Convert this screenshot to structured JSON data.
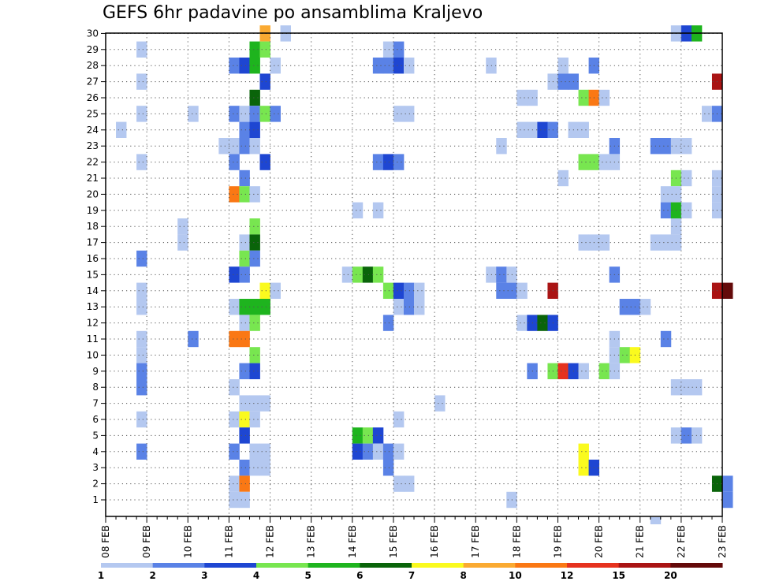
{
  "chart_data": {
    "type": "heatmap",
    "title": "GEFS 6hr padavine po ansamblima Kraljevo",
    "x_ticks": [
      "08 FEB",
      "09 FEB",
      "10 FEB",
      "11 FEB",
      "12 FEB",
      "13 FEB",
      "14 FEB",
      "15 FEB",
      "16 FEB",
      "17 FEB",
      "18 FEB",
      "19 FEB",
      "20 FEB",
      "21 FEB",
      "22 FEB",
      "23 FEB"
    ],
    "y_ticks": [
      "1",
      "2",
      "3",
      "4",
      "5",
      "6",
      "7",
      "8",
      "9",
      "10",
      "11",
      "12",
      "13",
      "14",
      "15",
      "16",
      "17",
      "18",
      "19",
      "20",
      "21",
      "22",
      "23",
      "24",
      "25",
      "26",
      "27",
      "28",
      "29",
      "30"
    ],
    "x_step": "6hr",
    "x_start": "08 FEB 00Z",
    "grid": true,
    "legend": {
      "position": "bottom",
      "levels": [
        "1",
        "2",
        "3",
        "4",
        "5",
        "6",
        "7",
        "8",
        "10",
        "12",
        "15",
        "20"
      ],
      "colors": [
        "#b4c8f0",
        "#5a82e6",
        "#1e46d2",
        "#78e650",
        "#1eb41e",
        "#0a640a",
        "#fafa1e",
        "#faaa32",
        "#fa7814",
        "#e6321e",
        "#aa1414",
        "#640a0a"
      ]
    },
    "cells": [
      [
        30,
        "11 FEB 18Z",
        8
      ],
      [
        30,
        "12 FEB 06Z",
        1
      ],
      [
        30,
        "21 FEB 18Z",
        1
      ],
      [
        30,
        "22 FEB 00Z",
        3
      ],
      [
        30,
        "22 FEB 06Z",
        5
      ],
      [
        29,
        "08 FEB 18Z",
        1
      ],
      [
        29,
        "11 FEB 12Z",
        5
      ],
      [
        29,
        "11 FEB 18Z",
        4
      ],
      [
        29,
        "14 FEB 18Z",
        1
      ],
      [
        29,
        "15 FEB 00Z",
        2
      ],
      [
        28,
        "11 FEB 00Z",
        2
      ],
      [
        28,
        "11 FEB 06Z",
        3
      ],
      [
        28,
        "11 FEB 12Z",
        5
      ],
      [
        28,
        "12 FEB 00Z",
        1
      ],
      [
        28,
        "14 FEB 12Z",
        2
      ],
      [
        28,
        "14 FEB 18Z",
        2
      ],
      [
        28,
        "15 FEB 00Z",
        3
      ],
      [
        28,
        "15 FEB 06Z",
        1
      ],
      [
        28,
        "17 FEB 06Z",
        1
      ],
      [
        28,
        "19 FEB 00Z",
        1
      ],
      [
        28,
        "19 FEB 18Z",
        2
      ],
      [
        27,
        "08 FEB 18Z",
        1
      ],
      [
        27,
        "11 FEB 18Z",
        3
      ],
      [
        27,
        "18 FEB 18Z",
        1
      ],
      [
        27,
        "19 FEB 00Z",
        2
      ],
      [
        27,
        "19 FEB 06Z",
        2
      ],
      [
        27,
        "22 FEB 18Z",
        15
      ],
      [
        26,
        "11 FEB 12Z",
        6
      ],
      [
        26,
        "18 FEB 00Z",
        1
      ],
      [
        26,
        "18 FEB 06Z",
        1
      ],
      [
        26,
        "19 FEB 12Z",
        4
      ],
      [
        26,
        "19 FEB 18Z",
        10
      ],
      [
        26,
        "20 FEB 00Z",
        1
      ],
      [
        25,
        "08 FEB 18Z",
        1
      ],
      [
        25,
        "10 FEB 00Z",
        1
      ],
      [
        25,
        "11 FEB 00Z",
        2
      ],
      [
        25,
        "11 FEB 06Z",
        1
      ],
      [
        25,
        "11 FEB 12Z",
        2
      ],
      [
        25,
        "11 FEB 18Z",
        4
      ],
      [
        25,
        "12 FEB 00Z",
        2
      ],
      [
        25,
        "15 FEB 00Z",
        1
      ],
      [
        25,
        "15 FEB 06Z",
        1
      ],
      [
        25,
        "22 FEB 12Z",
        1
      ],
      [
        25,
        "22 FEB 18Z",
        2
      ],
      [
        24,
        "08 FEB 06Z",
        1
      ],
      [
        24,
        "11 FEB 06Z",
        2
      ],
      [
        24,
        "11 FEB 12Z",
        3
      ],
      [
        24,
        "18 FEB 00Z",
        1
      ],
      [
        24,
        "18 FEB 06Z",
        1
      ],
      [
        24,
        "18 FEB 12Z",
        3
      ],
      [
        24,
        "18 FEB 18Z",
        2
      ],
      [
        24,
        "19 FEB 06Z",
        1
      ],
      [
        24,
        "19 FEB 12Z",
        1
      ],
      [
        23,
        "10 FEB 18Z",
        1
      ],
      [
        23,
        "11 FEB 00Z",
        1
      ],
      [
        23,
        "11 FEB 06Z",
        2
      ],
      [
        23,
        "11 FEB 12Z",
        1
      ],
      [
        23,
        "17 FEB 12Z",
        1
      ],
      [
        23,
        "20 FEB 06Z",
        2
      ],
      [
        23,
        "21 FEB 06Z",
        2
      ],
      [
        23,
        "21 FEB 12Z",
        2
      ],
      [
        23,
        "21 FEB 18Z",
        1
      ],
      [
        23,
        "22 FEB 00Z",
        1
      ],
      [
        22,
        "08 FEB 18Z",
        1
      ],
      [
        22,
        "11 FEB 00Z",
        2
      ],
      [
        22,
        "11 FEB 18Z",
        3
      ],
      [
        22,
        "14 FEB 12Z",
        2
      ],
      [
        22,
        "14 FEB 18Z",
        3
      ],
      [
        22,
        "15 FEB 00Z",
        2
      ],
      [
        22,
        "19 FEB 12Z",
        4
      ],
      [
        22,
        "19 FEB 18Z",
        4
      ],
      [
        22,
        "20 FEB 00Z",
        1
      ],
      [
        22,
        "20 FEB 06Z",
        1
      ],
      [
        21,
        "11 FEB 06Z",
        2
      ],
      [
        21,
        "19 FEB 00Z",
        1
      ],
      [
        21,
        "21 FEB 18Z",
        4
      ],
      [
        21,
        "22 FEB 00Z",
        1
      ],
      [
        21,
        "22 FEB 18Z",
        1
      ],
      [
        20,
        "11 FEB 00Z",
        10
      ],
      [
        20,
        "11 FEB 06Z",
        4
      ],
      [
        20,
        "11 FEB 12Z",
        1
      ],
      [
        20,
        "21 FEB 12Z",
        1
      ],
      [
        20,
        "21 FEB 18Z",
        1
      ],
      [
        20,
        "22 FEB 18Z",
        1
      ],
      [
        19,
        "14 FEB 00Z",
        1
      ],
      [
        19,
        "14 FEB 12Z",
        1
      ],
      [
        19,
        "21 FEB 12Z",
        2
      ],
      [
        19,
        "21 FEB 18Z",
        5
      ],
      [
        19,
        "22 FEB 00Z",
        1
      ],
      [
        19,
        "22 FEB 18Z",
        1
      ],
      [
        18,
        "09 FEB 18Z",
        1
      ],
      [
        18,
        "11 FEB 12Z",
        4
      ],
      [
        18,
        "21 FEB 18Z",
        1
      ],
      [
        17,
        "09 FEB 18Z",
        1
      ],
      [
        17,
        "11 FEB 06Z",
        1
      ],
      [
        17,
        "11 FEB 12Z",
        6
      ],
      [
        17,
        "19 FEB 12Z",
        1
      ],
      [
        17,
        "19 FEB 18Z",
        1
      ],
      [
        17,
        "20 FEB 00Z",
        1
      ],
      [
        17,
        "21 FEB 06Z",
        1
      ],
      [
        17,
        "21 FEB 12Z",
        1
      ],
      [
        17,
        "21 FEB 18Z",
        1
      ],
      [
        16,
        "08 FEB 18Z",
        2
      ],
      [
        16,
        "11 FEB 06Z",
        4
      ],
      [
        16,
        "11 FEB 12Z",
        2
      ],
      [
        15,
        "11 FEB 00Z",
        3
      ],
      [
        15,
        "11 FEB 06Z",
        2
      ],
      [
        15,
        "13 FEB 18Z",
        1
      ],
      [
        15,
        "14 FEB 00Z",
        4
      ],
      [
        15,
        "14 FEB 06Z",
        6
      ],
      [
        15,
        "14 FEB 12Z",
        4
      ],
      [
        15,
        "17 FEB 06Z",
        1
      ],
      [
        15,
        "17 FEB 12Z",
        2
      ],
      [
        15,
        "17 FEB 18Z",
        1
      ],
      [
        15,
        "20 FEB 06Z",
        2
      ],
      [
        14,
        "08 FEB 18Z",
        1
      ],
      [
        14,
        "11 FEB 18Z",
        7
      ],
      [
        14,
        "12 FEB 00Z",
        1
      ],
      [
        14,
        "14 FEB 18Z",
        4
      ],
      [
        14,
        "15 FEB 00Z",
        3
      ],
      [
        14,
        "15 FEB 06Z",
        2
      ],
      [
        14,
        "15 FEB 12Z",
        1
      ],
      [
        14,
        "17 FEB 12Z",
        2
      ],
      [
        14,
        "17 FEB 18Z",
        2
      ],
      [
        14,
        "18 FEB 00Z",
        1
      ],
      [
        14,
        "18 FEB 18Z",
        15
      ],
      [
        14,
        "22 FEB 18Z",
        15
      ],
      [
        14,
        "23 FEB 00Z",
        20
      ],
      [
        13,
        "08 FEB 18Z",
        1
      ],
      [
        13,
        "11 FEB 00Z",
        1
      ],
      [
        13,
        "11 FEB 06Z",
        5
      ],
      [
        13,
        "11 FEB 12Z",
        5
      ],
      [
        13,
        "11 FEB 18Z",
        5
      ],
      [
        13,
        "15 FEB 00Z",
        1
      ],
      [
        13,
        "15 FEB 06Z",
        2
      ],
      [
        13,
        "15 FEB 12Z",
        1
      ],
      [
        13,
        "20 FEB 12Z",
        2
      ],
      [
        13,
        "20 FEB 18Z",
        2
      ],
      [
        13,
        "21 FEB 00Z",
        1
      ],
      [
        12,
        "11 FEB 06Z",
        1
      ],
      [
        12,
        "11 FEB 12Z",
        4
      ],
      [
        12,
        "14 FEB 18Z",
        2
      ],
      [
        12,
        "18 FEB 00Z",
        1
      ],
      [
        12,
        "18 FEB 06Z",
        3
      ],
      [
        12,
        "18 FEB 12Z",
        6
      ],
      [
        12,
        "18 FEB 18Z",
        3
      ],
      [
        11,
        "08 FEB 18Z",
        1
      ],
      [
        11,
        "10 FEB 00Z",
        2
      ],
      [
        11,
        "11 FEB 00Z",
        10
      ],
      [
        11,
        "11 FEB 06Z",
        10
      ],
      [
        11,
        "20 FEB 06Z",
        1
      ],
      [
        11,
        "21 FEB 12Z",
        2
      ],
      [
        10,
        "08 FEB 18Z",
        1
      ],
      [
        10,
        "11 FEB 12Z",
        4
      ],
      [
        10,
        "20 FEB 06Z",
        1
      ],
      [
        10,
        "20 FEB 12Z",
        4
      ],
      [
        10,
        "20 FEB 18Z",
        7
      ],
      [
        9,
        "08 FEB 18Z",
        2
      ],
      [
        9,
        "11 FEB 06Z",
        2
      ],
      [
        9,
        "11 FEB 12Z",
        3
      ],
      [
        9,
        "18 FEB 06Z",
        2
      ],
      [
        9,
        "18 FEB 18Z",
        4
      ],
      [
        9,
        "19 FEB 00Z",
        12
      ],
      [
        9,
        "19 FEB 06Z",
        3
      ],
      [
        9,
        "19 FEB 12Z",
        1
      ],
      [
        9,
        "20 FEB 00Z",
        4
      ],
      [
        9,
        "20 FEB 06Z",
        1
      ],
      [
        8,
        "08 FEB 18Z",
        2
      ],
      [
        8,
        "11 FEB 00Z",
        1
      ],
      [
        8,
        "21 FEB 18Z",
        1
      ],
      [
        8,
        "22 FEB 00Z",
        1
      ],
      [
        8,
        "22 FEB 06Z",
        1
      ],
      [
        7,
        "11 FEB 06Z",
        1
      ],
      [
        7,
        "11 FEB 12Z",
        1
      ],
      [
        7,
        "11 FEB 18Z",
        1
      ],
      [
        7,
        "16 FEB 00Z",
        1
      ],
      [
        6,
        "08 FEB 18Z",
        1
      ],
      [
        6,
        "11 FEB 00Z",
        1
      ],
      [
        6,
        "11 FEB 06Z",
        7
      ],
      [
        6,
        "11 FEB 12Z",
        1
      ],
      [
        6,
        "15 FEB 00Z",
        1
      ],
      [
        5,
        "11 FEB 06Z",
        3
      ],
      [
        5,
        "14 FEB 00Z",
        5
      ],
      [
        5,
        "14 FEB 06Z",
        4
      ],
      [
        5,
        "14 FEB 12Z",
        3
      ],
      [
        5,
        "21 FEB 18Z",
        1
      ],
      [
        5,
        "22 FEB 00Z",
        2
      ],
      [
        5,
        "22 FEB 06Z",
        1
      ],
      [
        4,
        "08 FEB 18Z",
        2
      ],
      [
        4,
        "11 FEB 00Z",
        2
      ],
      [
        4,
        "11 FEB 12Z",
        1
      ],
      [
        4,
        "11 FEB 18Z",
        1
      ],
      [
        4,
        "14 FEB 00Z",
        3
      ],
      [
        4,
        "14 FEB 06Z",
        2
      ],
      [
        4,
        "14 FEB 12Z",
        1
      ],
      [
        4,
        "14 FEB 18Z",
        2
      ],
      [
        4,
        "15 FEB 00Z",
        1
      ],
      [
        4,
        "19 FEB 12Z",
        7
      ],
      [
        3,
        "11 FEB 06Z",
        2
      ],
      [
        3,
        "11 FEB 12Z",
        1
      ],
      [
        3,
        "11 FEB 18Z",
        1
      ],
      [
        3,
        "14 FEB 18Z",
        2
      ],
      [
        3,
        "19 FEB 12Z",
        7
      ],
      [
        3,
        "19 FEB 18Z",
        3
      ],
      [
        2,
        "11 FEB 00Z",
        1
      ],
      [
        2,
        "11 FEB 06Z",
        10
      ],
      [
        2,
        "15 FEB 00Z",
        1
      ],
      [
        2,
        "15 FEB 06Z",
        1
      ],
      [
        2,
        "22 FEB 18Z",
        6
      ],
      [
        2,
        "23 FEB 00Z",
        2
      ],
      [
        1,
        "11 FEB 00Z",
        1
      ],
      [
        1,
        "11 FEB 06Z",
        1
      ],
      [
        1,
        "17 FEB 18Z",
        1
      ],
      [
        1,
        "23 FEB 00Z",
        2
      ],
      [
        0,
        "21 FEB 06Z",
        1
      ]
    ]
  }
}
